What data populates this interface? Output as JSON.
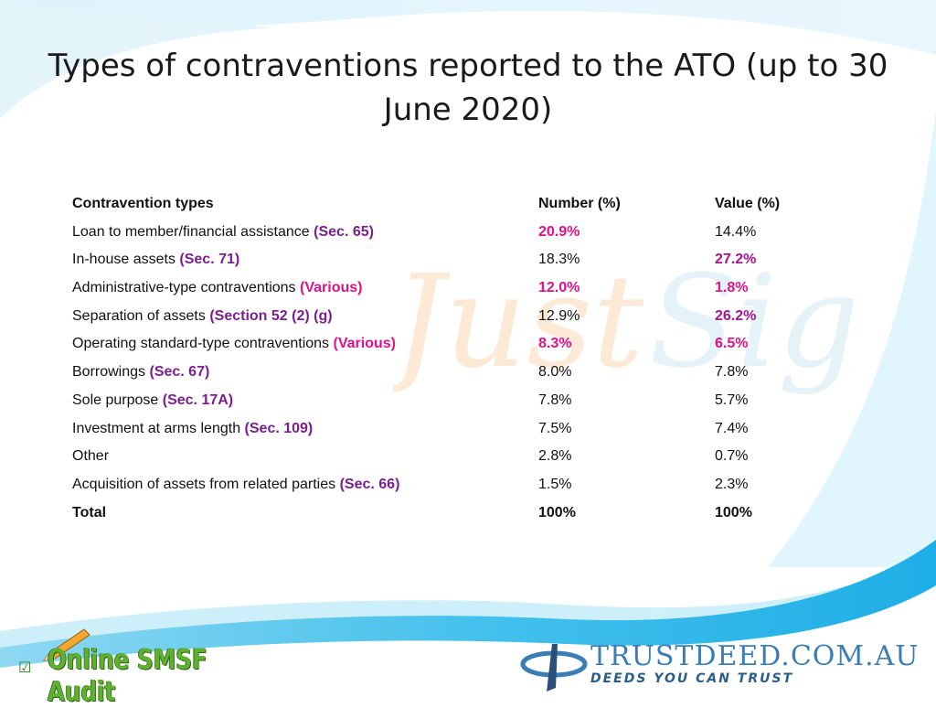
{
  "slide": {
    "title": "Types of contraventions reported to the ATO (up to 30 June 2020)"
  },
  "table": {
    "headers": [
      "Contravention types",
      "Number (%)",
      "Value (%)"
    ],
    "rows": [
      {
        "label": "Loan to member/financial assistance",
        "section": "(Sec. 65)",
        "number": "20.9%",
        "value": "14.4%"
      },
      {
        "label": "In-house assets",
        "section": "(Sec. 71)",
        "number": "18.3%",
        "value": "27.2%"
      },
      {
        "label": "Administrative-type contraventions",
        "section": "(Various)",
        "number": "12.0%",
        "value": "1.8%"
      },
      {
        "label": "Separation of assets",
        "section": "(Section 52 (2) (g)",
        "number": "12.9%",
        "value": "26.2%"
      },
      {
        "label": "Operating standard-type contraventions",
        "section": "(Various)",
        "number": "8.3%",
        "value": "6.5%"
      },
      {
        "label": "Borrowings",
        "section": "(Sec. 67)",
        "number": "8.0%",
        "value": "7.8%"
      },
      {
        "label": "Sole purpose",
        "section": "(Sec. 17A)",
        "number": "7.8%",
        "value": "5.7%"
      },
      {
        "label": "Investment at arms length",
        "section": "(Sec. 109)",
        "number": "7.5%",
        "value": "7.4%"
      },
      {
        "label": "Other",
        "section": "",
        "number": "2.8%",
        "value": "0.7%"
      },
      {
        "label": "Acquisition of assets from related parties",
        "section": "(Sec. 66)",
        "number": "1.5%",
        "value": "2.3%"
      }
    ],
    "total": {
      "label": "Total",
      "number": "100%",
      "value": "100%"
    }
  },
  "footer": {
    "left_brand": "Online SMSF Audit",
    "left_check": "☑",
    "right_brand": "TRUSTDEED.COM.AU",
    "right_tagline": "DEEDS YOU CAN TRUST"
  },
  "colors": {
    "section": "#7b1f8e",
    "highlight_magenta": "#e0118a",
    "highlight_purple": "#a2168f",
    "wave_blue": "#29b6e8"
  }
}
